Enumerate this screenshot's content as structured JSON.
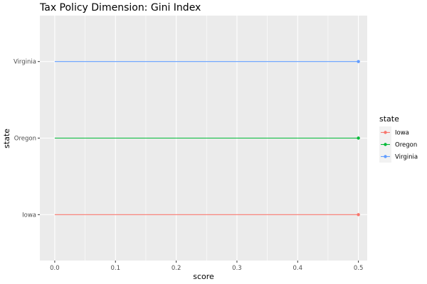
{
  "chart_data": {
    "type": "line",
    "title": "Tax Policy Dimension: Gini Index",
    "xlabel": "score",
    "ylabel": "state",
    "xlim": [
      -0.0245,
      0.5145
    ],
    "xticks": [
      "0.0",
      "0.1",
      "0.2",
      "0.3",
      "0.4",
      "0.5"
    ],
    "categories": [
      "Iowa",
      "Oregon",
      "Virginia"
    ],
    "grid": true,
    "background": "#ebebeb",
    "legend": {
      "title": "state",
      "placement": "right",
      "entries": [
        "Iowa",
        "Oregon",
        "Virginia"
      ]
    },
    "series": [
      {
        "name": "Iowa",
        "color": "#f8766d",
        "x": [
          0.0,
          0.5
        ],
        "y": [
          "Iowa",
          "Iowa"
        ],
        "points": [
          0.5
        ]
      },
      {
        "name": "Oregon",
        "color": "#00ba38",
        "x": [
          0.0,
          0.5
        ],
        "y": [
          "Oregon",
          "Oregon"
        ],
        "points": [
          0.5
        ]
      },
      {
        "name": "Virginia",
        "color": "#619cff",
        "x": [
          0.0,
          0.5
        ],
        "y": [
          "Virginia",
          "Virginia"
        ],
        "points": [
          0.5
        ]
      }
    ]
  }
}
